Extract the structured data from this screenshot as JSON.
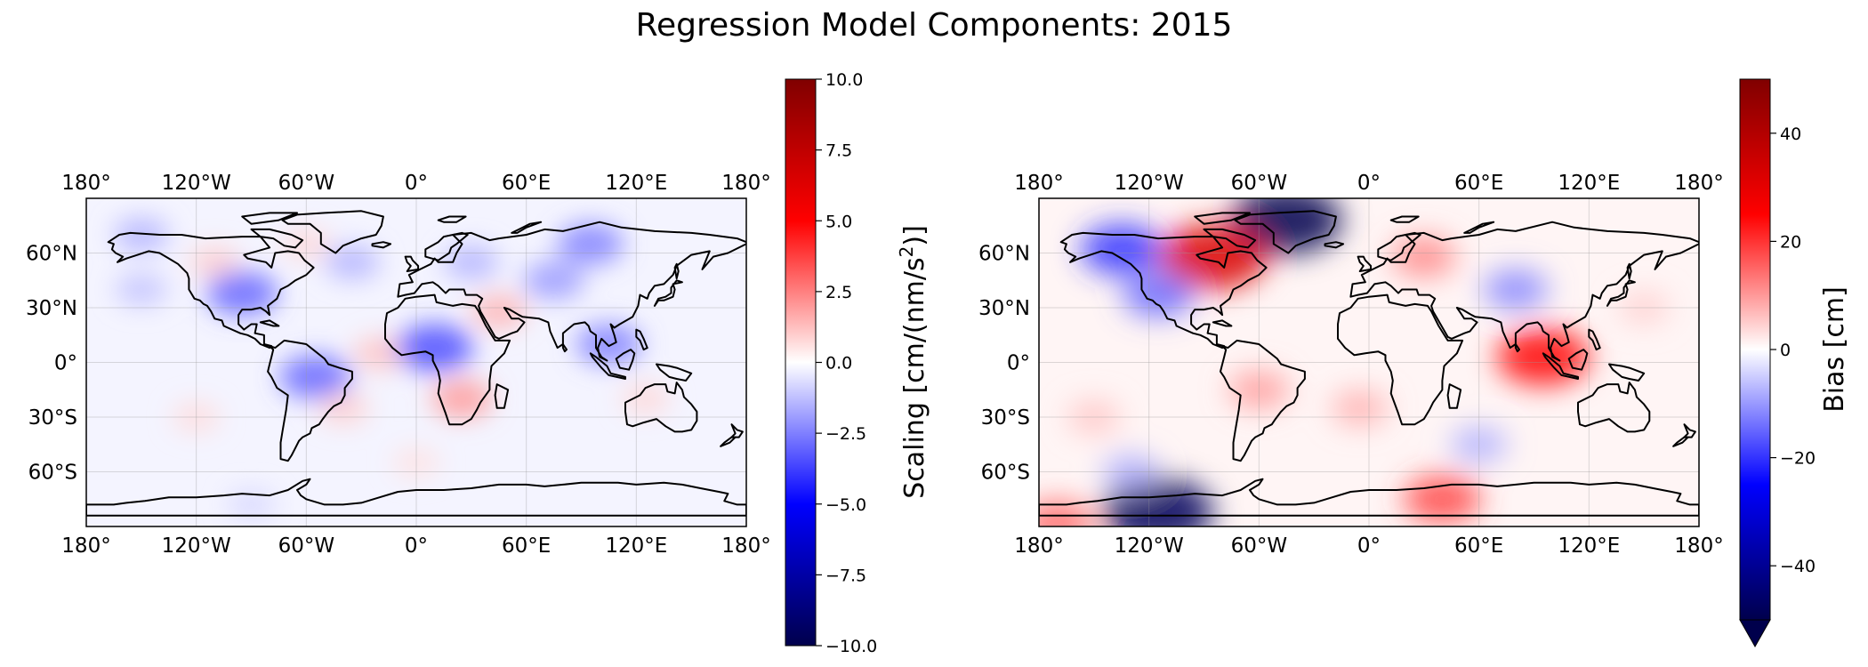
{
  "figure": {
    "title": "Regression Model Components: 2015"
  },
  "tick_labels": {
    "lon": [
      "180°",
      "120°W",
      "60°W",
      "0°",
      "60°E",
      "120°E",
      "180°"
    ],
    "lat": [
      "60°N",
      "30°N",
      "0°",
      "30°S",
      "60°S"
    ]
  },
  "chart_data": [
    {
      "type": "heatmap",
      "title": "",
      "projection": "PlateCarree",
      "lon_range": [
        -180,
        180
      ],
      "lat_range": [
        -90,
        90
      ],
      "lon_ticks": [
        -180,
        -120,
        -60,
        0,
        60,
        120,
        180
      ],
      "lat_ticks": [
        60,
        30,
        0,
        -30,
        -60
      ],
      "grid": true,
      "colormap": "seismic",
      "colorbar": {
        "label": "Scaling [cm/(nm/s²)]",
        "range": [
          -10,
          10
        ],
        "ticks": [
          10.0,
          7.5,
          5.0,
          2.5,
          0.0,
          -2.5,
          -5.0,
          -7.5,
          -10.0
        ],
        "tick_labels": [
          "10.0",
          "7.5",
          "5.0",
          "2.5",
          "0.0",
          "−2.5",
          "−5.0",
          "−7.5",
          "−10.0"
        ],
        "extend": "neither"
      },
      "features": [
        {
          "lon": -150,
          "lat": 70,
          "value": -1.5
        },
        {
          "lon": -150,
          "lat": 40,
          "value": -1.2
        },
        {
          "lon": -110,
          "lat": 55,
          "value": 1.0
        },
        {
          "lon": -95,
          "lat": 38,
          "value": -3.0
        },
        {
          "lon": -60,
          "lat": 65,
          "value": 0.8
        },
        {
          "lon": -35,
          "lat": 55,
          "value": -1.5
        },
        {
          "lon": -20,
          "lat": 5,
          "value": 1.2
        },
        {
          "lon": -55,
          "lat": -8,
          "value": -3.0
        },
        {
          "lon": -40,
          "lat": -25,
          "value": 1.0
        },
        {
          "lon": 10,
          "lat": 8,
          "value": -3.5
        },
        {
          "lon": 25,
          "lat": -20,
          "value": 2.0
        },
        {
          "lon": 30,
          "lat": 55,
          "value": -1.5
        },
        {
          "lon": 45,
          "lat": 28,
          "value": 1.5
        },
        {
          "lon": 75,
          "lat": 45,
          "value": -2.0
        },
        {
          "lon": 95,
          "lat": 65,
          "value": -2.5
        },
        {
          "lon": 105,
          "lat": 10,
          "value": -2.5
        },
        {
          "lon": 125,
          "lat": -20,
          "value": 0.8
        },
        {
          "lon": -120,
          "lat": -30,
          "value": 0.7
        },
        {
          "lon": 0,
          "lat": -55,
          "value": 0.6
        },
        {
          "lon": -90,
          "lat": -78,
          "value": -0.8
        }
      ]
    },
    {
      "type": "heatmap",
      "title": "",
      "projection": "PlateCarree",
      "lon_range": [
        -180,
        180
      ],
      "lat_range": [
        -90,
        90
      ],
      "lon_ticks": [
        -180,
        -120,
        -60,
        0,
        60,
        120,
        180
      ],
      "lat_ticks": [
        60,
        30,
        0,
        -30,
        -60
      ],
      "grid": true,
      "colormap": "seismic",
      "colorbar": {
        "label": "Bias [cm]",
        "range": [
          -50,
          50
        ],
        "ticks": [
          40,
          20,
          0,
          -20,
          -40
        ],
        "tick_labels": [
          "40",
          "20",
          "0",
          "−20",
          "−40"
        ],
        "extend": "min"
      },
      "features": [
        {
          "lon": -45,
          "lat": 78,
          "value": -50
        },
        {
          "lon": -115,
          "lat": -82,
          "value": -48
        },
        {
          "lon": -85,
          "lat": 58,
          "value": 32
        },
        {
          "lon": -135,
          "lat": 62,
          "value": -20
        },
        {
          "lon": -115,
          "lat": 37,
          "value": -15
        },
        {
          "lon": 95,
          "lat": 3,
          "value": 25
        },
        {
          "lon": 40,
          "lat": -75,
          "value": 18
        },
        {
          "lon": 30,
          "lat": 58,
          "value": 12
        },
        {
          "lon": -150,
          "lat": -30,
          "value": 6
        },
        {
          "lon": -5,
          "lat": -25,
          "value": 8
        },
        {
          "lon": 80,
          "lat": 40,
          "value": -12
        },
        {
          "lon": -60,
          "lat": -15,
          "value": 10
        },
        {
          "lon": 60,
          "lat": -45,
          "value": -8
        },
        {
          "lon": -170,
          "lat": -88,
          "value": 15
        },
        {
          "lon": -130,
          "lat": -60,
          "value": -8
        },
        {
          "lon": 150,
          "lat": 30,
          "value": 5
        }
      ]
    }
  ]
}
